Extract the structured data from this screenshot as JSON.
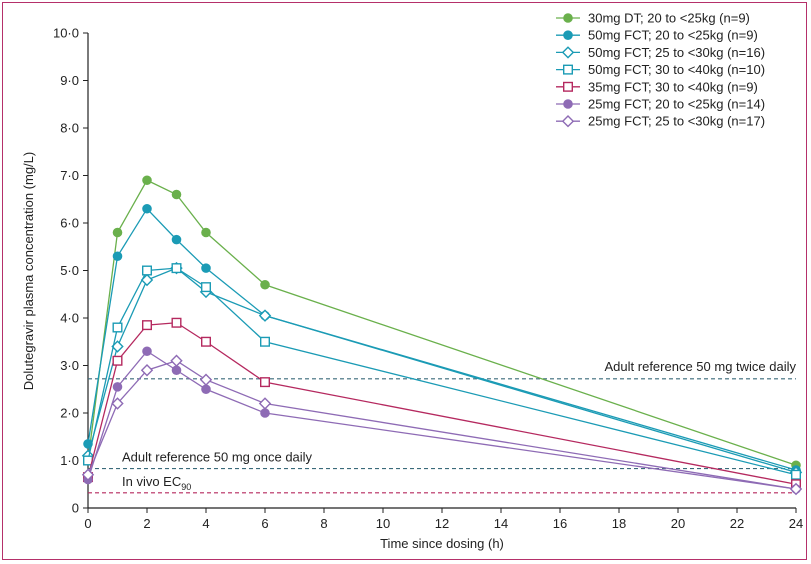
{
  "chart_data": {
    "type": "line",
    "xlabel": "Time since dosing (h)",
    "ylabel": "Dolutegravir plasma concentration (mg/L)",
    "xlim": [
      0,
      24
    ],
    "ylim": [
      0,
      10
    ],
    "x_ticks": [
      "0",
      "2",
      "4",
      "6",
      "8",
      "10",
      "12",
      "14",
      "16",
      "18",
      "20",
      "22",
      "24"
    ],
    "y_ticks": [
      "0",
      "1·0",
      "2·0",
      "3·0",
      "4·0",
      "5·0",
      "6·0",
      "7·0",
      "8·0",
      "9·0",
      "10·0"
    ],
    "legend_position": "top-right",
    "grid": false,
    "series": [
      {
        "name": "30mg DT; 20 to <25kg (n=9)",
        "color": "#6ab04c",
        "marker": "circle-filled",
        "x": [
          0,
          1,
          2,
          3,
          4,
          6,
          24
        ],
        "y": [
          1.0,
          5.8,
          6.9,
          6.6,
          5.8,
          4.7,
          0.9
        ]
      },
      {
        "name": "50mg FCT; 20 to <25kg (n=9)",
        "color": "#1b9bb5",
        "marker": "circle-filled",
        "x": [
          0,
          1,
          2,
          3,
          4,
          6,
          24
        ],
        "y": [
          1.35,
          5.3,
          6.3,
          5.65,
          5.05,
          4.05,
          0.8
        ]
      },
      {
        "name": "50mg FCT; 25 to <30kg (n=16)",
        "color": "#1b9bb5",
        "marker": "diamond-open",
        "x": [
          0,
          1,
          2,
          3,
          4,
          6,
          24
        ],
        "y": [
          1.1,
          3.4,
          4.8,
          5.05,
          4.55,
          4.05,
          0.75
        ]
      },
      {
        "name": "50mg FCT; 30 to <40kg (n=10)",
        "color": "#1b9bb5",
        "marker": "square-open",
        "x": [
          0,
          1,
          2,
          3,
          4,
          6,
          24
        ],
        "y": [
          1.0,
          3.8,
          5.0,
          5.05,
          4.65,
          3.5,
          0.7
        ]
      },
      {
        "name": "35mg FCT; 30 to <40kg (n=9)",
        "color": "#b5295f",
        "marker": "square-open",
        "x": [
          0,
          1,
          2,
          3,
          4,
          6,
          24
        ],
        "y": [
          0.65,
          3.1,
          3.85,
          3.9,
          3.5,
          2.65,
          0.5
        ]
      },
      {
        "name": "25mg FCT; 20 to <25kg (n=14)",
        "color": "#8e6bb5",
        "marker": "circle-filled",
        "x": [
          0,
          1,
          2,
          3,
          4,
          6,
          24
        ],
        "y": [
          0.6,
          2.55,
          3.3,
          2.9,
          2.5,
          2.0,
          0.4
        ]
      },
      {
        "name": "25mg FCT; 25 to <30kg (n=17)",
        "color": "#8e6bb5",
        "marker": "diamond-open",
        "x": [
          0,
          1,
          2,
          3,
          4,
          6,
          24
        ],
        "y": [
          0.7,
          2.2,
          2.9,
          3.1,
          2.7,
          2.2,
          0.4
        ]
      }
    ],
    "reference_lines": [
      {
        "label": "Adult reference 50 mg twice daily",
        "y": 2.72,
        "color": "#3a6a7a"
      },
      {
        "label": "Adult reference 50 mg once daily",
        "y": 0.83,
        "color": "#3a6a7a"
      },
      {
        "label": "In vivo EC",
        "label_sub": "90",
        "y": 0.32,
        "color": "#b5295f"
      }
    ]
  }
}
